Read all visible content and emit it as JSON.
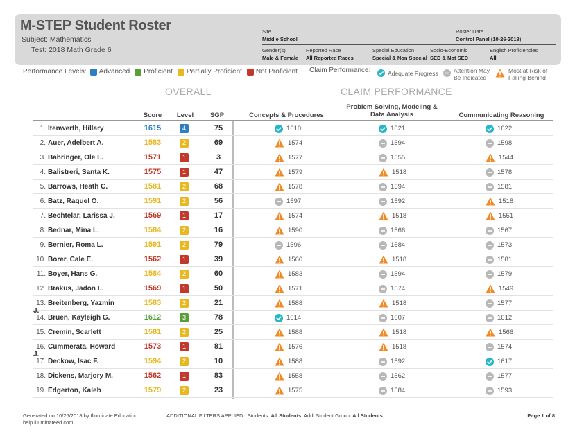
{
  "header": {
    "title": "M-STEP Student Roster",
    "subject": "Subject: Mathematics",
    "test": "Test: 2018 Math Grade 6",
    "site_label": "Site",
    "site_value": "Middle School",
    "roster_date_label": "Roster Date",
    "roster_date_value": "Control Panel (10-26-2018)",
    "gender_label": "Gender(s)",
    "gender_value": "Male & Female",
    "race_label": "Reported Race",
    "race_value": "All Reported Races",
    "sped_label": "Special Education",
    "sped_value": "Special & Non Special",
    "socio_label": "Socio-Economic",
    "socio_value": "SED & Not SED",
    "english_label": "English Proficiencies",
    "english_value": "All"
  },
  "legend": {
    "title": "Performance Levels:",
    "advanced": "Advanced",
    "proficient": "Proficient",
    "partially": "Partially Proficient",
    "not": "Not Proficient",
    "claim_title": "Claim Performance:",
    "adequate": "Adequate Progress",
    "attention_1": "Attention May",
    "attention_2": "Be Indicated",
    "risk_1": "Most at Risk of",
    "risk_2": "Falling Behind"
  },
  "sections": {
    "overall": "OVERALL",
    "claim": "CLAIM PERFORMANCE"
  },
  "columns": {
    "score": "Score",
    "level": "Level",
    "sgp": "SGP",
    "concepts": "Concepts & Procedures",
    "problem_1": "Problem Solving, Modeling &",
    "problem_2": "Data Analysis",
    "communicating": "Communicating Reasoning"
  },
  "colors": {
    "advanced": "#2e7ec4",
    "proficient": "#5a9e3a",
    "partially": "#e8b820",
    "not": "#c0392b",
    "adequate": "#26b5c9",
    "attention": "#b8b8b8",
    "risk": "#f08a24"
  },
  "students": [
    {
      "n": "1.",
      "name": "Itenwerth, Hillary",
      "score": "1615",
      "level": "4",
      "sgp": "75",
      "c1": [
        "ok",
        "1610"
      ],
      "c2": [
        "ok",
        "1621"
      ],
      "c3": [
        "ok",
        "1622"
      ]
    },
    {
      "n": "2.",
      "name": "Auer, Adelbert A.",
      "score": "1583",
      "level": "2",
      "sgp": "69",
      "c1": [
        "risk",
        "1574"
      ],
      "c2": [
        "att",
        "1594"
      ],
      "c3": [
        "att",
        "1598"
      ]
    },
    {
      "n": "3.",
      "name": "Bahringer, Ole L.",
      "score": "1571",
      "level": "1",
      "sgp": "3",
      "c1": [
        "risk",
        "1577"
      ],
      "c2": [
        "att",
        "1555"
      ],
      "c3": [
        "risk",
        "1544"
      ]
    },
    {
      "n": "4.",
      "name": "Balistreri, Santa K.",
      "score": "1575",
      "level": "1",
      "sgp": "47",
      "c1": [
        "risk",
        "1579"
      ],
      "c2": [
        "risk",
        "1518"
      ],
      "c3": [
        "att",
        "1578"
      ]
    },
    {
      "n": "5.",
      "name": "Barrows, Heath C.",
      "score": "1581",
      "level": "2",
      "sgp": "68",
      "c1": [
        "risk",
        "1578"
      ],
      "c2": [
        "att",
        "1594"
      ],
      "c3": [
        "att",
        "1581"
      ]
    },
    {
      "n": "6.",
      "name": "Batz, Raquel O.",
      "score": "1591",
      "level": "2",
      "sgp": "56",
      "c1": [
        "att",
        "1597"
      ],
      "c2": [
        "att",
        "1592"
      ],
      "c3": [
        "risk",
        "1518"
      ]
    },
    {
      "n": "7.",
      "name": "Bechtelar, Larissa J.",
      "score": "1569",
      "level": "1",
      "sgp": "17",
      "c1": [
        "risk",
        "1574"
      ],
      "c2": [
        "risk",
        "1518"
      ],
      "c3": [
        "risk",
        "1551"
      ]
    },
    {
      "n": "8.",
      "name": "Bednar, Mina L.",
      "score": "1584",
      "level": "2",
      "sgp": "16",
      "c1": [
        "risk",
        "1590"
      ],
      "c2": [
        "att",
        "1566"
      ],
      "c3": [
        "att",
        "1567"
      ]
    },
    {
      "n": "9.",
      "name": "Bernier, Roma L.",
      "score": "1591",
      "level": "2",
      "sgp": "79",
      "c1": [
        "att",
        "1596"
      ],
      "c2": [
        "att",
        "1584"
      ],
      "c3": [
        "att",
        "1573"
      ]
    },
    {
      "n": "10.",
      "name": "Borer, Cale E.",
      "score": "1562",
      "level": "1",
      "sgp": "39",
      "c1": [
        "risk",
        "1560"
      ],
      "c2": [
        "risk",
        "1518"
      ],
      "c3": [
        "att",
        "1581"
      ]
    },
    {
      "n": "11.",
      "name": "Boyer, Hans G.",
      "score": "1584",
      "level": "2",
      "sgp": "60",
      "c1": [
        "risk",
        "1583"
      ],
      "c2": [
        "att",
        "1594"
      ],
      "c3": [
        "att",
        "1579"
      ]
    },
    {
      "n": "12.",
      "name": "Brakus, Jadon L.",
      "score": "1569",
      "level": "1",
      "sgp": "50",
      "c1": [
        "risk",
        "1571"
      ],
      "c2": [
        "att",
        "1574"
      ],
      "c3": [
        "risk",
        "1549"
      ]
    },
    {
      "n": "13.",
      "name": "Breitenberg, Yazmin J.",
      "score": "1583",
      "level": "2",
      "sgp": "21",
      "c1": [
        "risk",
        "1588"
      ],
      "c2": [
        "risk",
        "1518"
      ],
      "c3": [
        "att",
        "1577"
      ]
    },
    {
      "n": "14.",
      "name": "Bruen, Kayleigh G.",
      "score": "1612",
      "level": "3",
      "sgp": "78",
      "c1": [
        "ok",
        "1614"
      ],
      "c2": [
        "att",
        "1607"
      ],
      "c3": [
        "att",
        "1612"
      ]
    },
    {
      "n": "15.",
      "name": "Cremin, Scarlett",
      "score": "1581",
      "level": "2",
      "sgp": "25",
      "c1": [
        "risk",
        "1588"
      ],
      "c2": [
        "risk",
        "1518"
      ],
      "c3": [
        "risk",
        "1566"
      ]
    },
    {
      "n": "16.",
      "name": "Cummerata, Howard J.",
      "score": "1573",
      "level": "1",
      "sgp": "81",
      "c1": [
        "risk",
        "1576"
      ],
      "c2": [
        "risk",
        "1518"
      ],
      "c3": [
        "att",
        "1574"
      ]
    },
    {
      "n": "17.",
      "name": "Deckow, Isac F.",
      "score": "1594",
      "level": "2",
      "sgp": "10",
      "c1": [
        "risk",
        "1588"
      ],
      "c2": [
        "att",
        "1592"
      ],
      "c3": [
        "ok",
        "1617"
      ]
    },
    {
      "n": "18.",
      "name": "Dickens, Marjory M.",
      "score": "1562",
      "level": "1",
      "sgp": "83",
      "c1": [
        "risk",
        "1558"
      ],
      "c2": [
        "att",
        "1562"
      ],
      "c3": [
        "att",
        "1577"
      ]
    },
    {
      "n": "19.",
      "name": "Edgerton, Kaleb",
      "score": "1579",
      "level": "2",
      "sgp": "23",
      "c1": [
        "risk",
        "1575"
      ],
      "c2": [
        "att",
        "1584"
      ],
      "c3": [
        "att",
        "1593"
      ]
    }
  ],
  "footer": {
    "generated": "Generated on 10/26/2018 by Illuminate Education",
    "help": "help.illuminateed.com",
    "filters_label": "ADDITIONAL FILTERS APPLIED:",
    "students_label": "Students:",
    "students_value": "All Students",
    "group_label": "Addl Student Group:",
    "group_value": "All Students",
    "page": "Page 1 of 8"
  }
}
